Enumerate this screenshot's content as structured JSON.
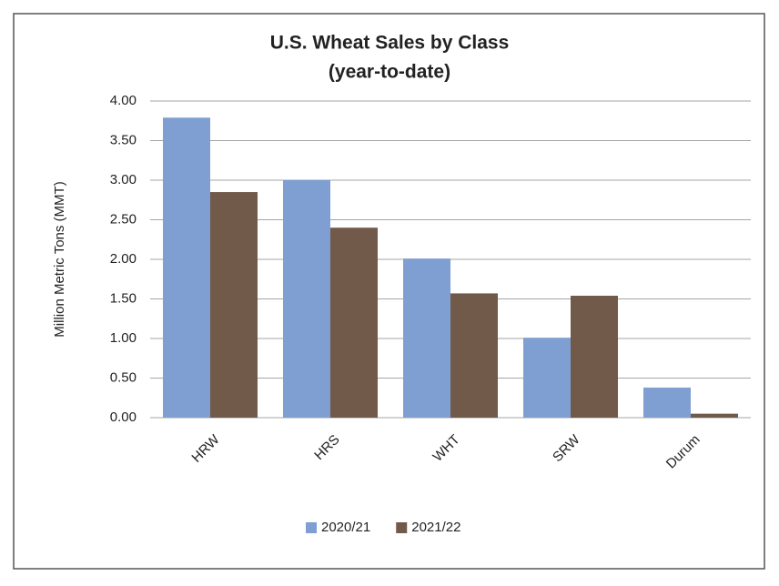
{
  "chart_data": {
    "type": "bar",
    "title": "U.S. Wheat Sales by Class",
    "subtitle": "(year-to-date)",
    "y_label": "Million Metric Tons (MMT)",
    "categories": [
      "HRW",
      "HRS",
      "WHT",
      "SRW",
      "Durum"
    ],
    "series": [
      {
        "name": "2020/21",
        "color": "#7f9fd3",
        "values": [
          3.79,
          3.0,
          2.01,
          1.01,
          0.38
        ]
      },
      {
        "name": "2021/22",
        "color": "#725a4a",
        "values": [
          2.85,
          2.4,
          1.57,
          1.54,
          0.05
        ]
      }
    ],
    "ylim": [
      0,
      4
    ],
    "yticks": [
      {
        "value": 0,
        "label": "0.00"
      },
      {
        "value": 0.5,
        "label": "0.50"
      },
      {
        "value": 1,
        "label": "1.00"
      },
      {
        "value": 1.5,
        "label": "1.50"
      },
      {
        "value": 2,
        "label": "2.00"
      },
      {
        "value": 2.5,
        "label": "2.50"
      },
      {
        "value": 3,
        "label": "3.00"
      },
      {
        "value": 3.5,
        "label": "3.50"
      },
      {
        "value": 4,
        "label": "4.00"
      }
    ],
    "grid": true,
    "legend": "bottom"
  }
}
